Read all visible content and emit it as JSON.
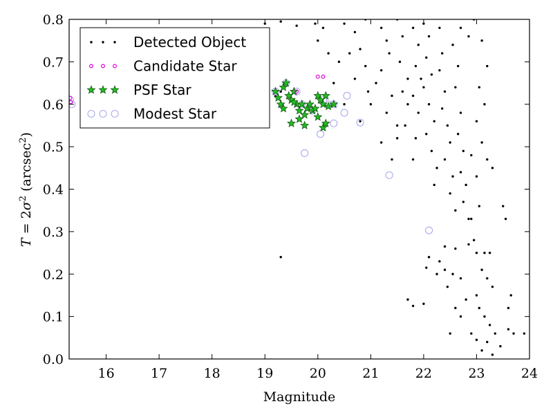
{
  "chart_data": {
    "type": "scatter",
    "xlabel": "Magnitude",
    "ylabel_parts": {
      "prefix": "T",
      "eq": " = 2",
      "sigma": "σ",
      "sup": "2",
      "unit_open": " (arcsec",
      "unit_close": ")"
    },
    "xlim": [
      15.3,
      24.0
    ],
    "ylim": [
      0.0,
      0.8
    ],
    "xticks": [
      16,
      17,
      18,
      19,
      20,
      21,
      22,
      23,
      24
    ],
    "yticks": [
      0.0,
      0.1,
      0.2,
      0.3,
      0.4,
      0.5,
      0.6,
      0.7,
      0.8
    ],
    "grid": false,
    "legend_position": "upper-left",
    "series": [
      {
        "name": "Detected Object",
        "marker": "dot",
        "color": "#000000",
        "points": [
          [
            19.3,
            0.24
          ],
          [
            19.05,
            0.64
          ],
          [
            19.2,
            0.62
          ],
          [
            19.3,
            0.63
          ],
          [
            19.0,
            0.79
          ],
          [
            19.3,
            0.795
          ],
          [
            19.6,
            0.785
          ],
          [
            19.95,
            0.79
          ],
          [
            20.1,
            0.78
          ],
          [
            20.5,
            0.79
          ],
          [
            20.7,
            0.77
          ],
          [
            20.9,
            0.8
          ],
          [
            20.6,
            0.72
          ],
          [
            20.4,
            0.7
          ],
          [
            20.2,
            0.72
          ],
          [
            20.0,
            0.75
          ],
          [
            20.8,
            0.73
          ],
          [
            20.9,
            0.69
          ],
          [
            20.7,
            0.66
          ],
          [
            20.95,
            0.63
          ],
          [
            21.0,
            0.6
          ],
          [
            20.3,
            0.65
          ],
          [
            20.5,
            0.6
          ],
          [
            20.8,
            0.56
          ],
          [
            21.2,
            0.78
          ],
          [
            21.3,
            0.75
          ],
          [
            21.35,
            0.72
          ],
          [
            21.2,
            0.68
          ],
          [
            21.1,
            0.65
          ],
          [
            21.4,
            0.62
          ],
          [
            21.3,
            0.58
          ],
          [
            21.5,
            0.55
          ],
          [
            21.2,
            0.51
          ],
          [
            21.4,
            0.47
          ],
          [
            21.5,
            0.52
          ],
          [
            21.5,
            0.8
          ],
          [
            21.6,
            0.76
          ],
          [
            21.55,
            0.7
          ],
          [
            21.7,
            0.66
          ],
          [
            21.6,
            0.63
          ],
          [
            21.7,
            0.6
          ],
          [
            21.65,
            0.55
          ],
          [
            21.8,
            0.78
          ],
          [
            21.9,
            0.74
          ],
          [
            21.85,
            0.69
          ],
          [
            21.95,
            0.66
          ],
          [
            21.8,
            0.62
          ],
          [
            21.9,
            0.58
          ],
          [
            21.85,
            0.52
          ],
          [
            21.8,
            0.47
          ],
          [
            22.0,
            0.79
          ],
          [
            22.1,
            0.76
          ],
          [
            22.05,
            0.71
          ],
          [
            22.15,
            0.67
          ],
          [
            22.0,
            0.64
          ],
          [
            22.1,
            0.6
          ],
          [
            22.2,
            0.56
          ],
          [
            22.05,
            0.53
          ],
          [
            22.15,
            0.49
          ],
          [
            22.25,
            0.45
          ],
          [
            22.2,
            0.41
          ],
          [
            22.3,
            0.78
          ],
          [
            22.35,
            0.72
          ],
          [
            22.3,
            0.68
          ],
          [
            22.4,
            0.63
          ],
          [
            22.35,
            0.59
          ],
          [
            22.45,
            0.55
          ],
          [
            22.5,
            0.51
          ],
          [
            22.4,
            0.47
          ],
          [
            22.55,
            0.43
          ],
          [
            22.5,
            0.39
          ],
          [
            22.6,
            0.35
          ],
          [
            22.55,
            0.74
          ],
          [
            22.65,
            0.69
          ],
          [
            22.6,
            0.64
          ],
          [
            22.7,
            0.58
          ],
          [
            22.65,
            0.53
          ],
          [
            22.75,
            0.49
          ],
          [
            22.7,
            0.44
          ],
          [
            22.8,
            0.41
          ],
          [
            22.75,
            0.37
          ],
          [
            22.85,
            0.33
          ],
          [
            22.7,
            0.78
          ],
          [
            22.85,
            0.76
          ],
          [
            22.95,
            0.8
          ],
          [
            23.1,
            0.75
          ],
          [
            23.2,
            0.69
          ],
          [
            23.05,
            0.64
          ],
          [
            23.15,
            0.6
          ],
          [
            23.0,
            0.56
          ],
          [
            23.1,
            0.51
          ],
          [
            23.2,
            0.47
          ],
          [
            23.3,
            0.45
          ],
          [
            22.9,
            0.48
          ],
          [
            23.0,
            0.43
          ],
          [
            23.05,
            0.36
          ],
          [
            22.9,
            0.33
          ],
          [
            23.5,
            0.36
          ],
          [
            23.55,
            0.33
          ],
          [
            22.4,
            0.265
          ],
          [
            22.6,
            0.26
          ],
          [
            22.3,
            0.23
          ],
          [
            22.4,
            0.21
          ],
          [
            22.55,
            0.2
          ],
          [
            22.7,
            0.19
          ],
          [
            22.85,
            0.27
          ],
          [
            22.95,
            0.28
          ],
          [
            23.0,
            0.25
          ],
          [
            23.15,
            0.25
          ],
          [
            23.25,
            0.25
          ],
          [
            23.1,
            0.21
          ],
          [
            23.2,
            0.19
          ],
          [
            23.3,
            0.17
          ],
          [
            23.0,
            0.15
          ],
          [
            22.8,
            0.14
          ],
          [
            22.6,
            0.12
          ],
          [
            22.7,
            0.1
          ],
          [
            23.05,
            0.12
          ],
          [
            23.15,
            0.1
          ],
          [
            23.25,
            0.08
          ],
          [
            23.35,
            0.06
          ],
          [
            23.2,
            0.04
          ],
          [
            23.1,
            0.02
          ],
          [
            23.3,
            0.01
          ],
          [
            23.45,
            0.03
          ],
          [
            23.6,
            0.07
          ],
          [
            23.7,
            0.06
          ],
          [
            23.9,
            0.06
          ],
          [
            23.6,
            0.12
          ],
          [
            23.65,
            0.15
          ],
          [
            21.7,
            0.14
          ],
          [
            21.8,
            0.125
          ],
          [
            22.0,
            0.13
          ],
          [
            22.5,
            0.06
          ],
          [
            22.05,
            0.215
          ],
          [
            22.1,
            0.24
          ],
          [
            22.25,
            0.2
          ],
          [
            22.45,
            0.17
          ],
          [
            22.9,
            0.06
          ],
          [
            23.0,
            0.045
          ]
        ]
      },
      {
        "name": "Candidate Star",
        "marker": "circle-small",
        "color": "#dd00dd",
        "points": [
          [
            15.32,
            0.615
          ],
          [
            15.33,
            0.605
          ],
          [
            20.0,
            0.665
          ],
          [
            20.1,
            0.665
          ],
          [
            19.6,
            0.63
          ]
        ]
      },
      {
        "name": "PSF Star",
        "marker": "star",
        "color": "#22bb22",
        "points": [
          [
            19.2,
            0.63
          ],
          [
            19.25,
            0.615
          ],
          [
            19.3,
            0.6
          ],
          [
            19.35,
            0.64
          ],
          [
            19.4,
            0.65
          ],
          [
            19.45,
            0.62
          ],
          [
            19.5,
            0.61
          ],
          [
            19.55,
            0.63
          ],
          [
            19.6,
            0.6
          ],
          [
            19.65,
            0.585
          ],
          [
            19.7,
            0.6
          ],
          [
            19.75,
            0.575
          ],
          [
            19.8,
            0.59
          ],
          [
            19.85,
            0.6
          ],
          [
            19.9,
            0.585
          ],
          [
            19.95,
            0.59
          ],
          [
            20.0,
            0.62
          ],
          [
            20.05,
            0.61
          ],
          [
            20.1,
            0.6
          ],
          [
            20.15,
            0.62
          ],
          [
            20.2,
            0.595
          ],
          [
            20.3,
            0.6
          ],
          [
            19.5,
            0.555
          ],
          [
            19.65,
            0.565
          ],
          [
            19.75,
            0.55
          ],
          [
            20.1,
            0.545
          ],
          [
            19.35,
            0.59
          ],
          [
            19.55,
            0.605
          ],
          [
            20.0,
            0.57
          ],
          [
            20.15,
            0.555
          ]
        ]
      },
      {
        "name": "Modest Star",
        "marker": "circle-large",
        "color": "#aaaaee",
        "points": [
          [
            15.32,
            0.61
          ],
          [
            15.35,
            0.6
          ],
          [
            19.6,
            0.63
          ],
          [
            20.05,
            0.53
          ],
          [
            20.3,
            0.555
          ],
          [
            19.75,
            0.485
          ],
          [
            20.3,
            0.6
          ],
          [
            20.5,
            0.58
          ],
          [
            20.55,
            0.62
          ],
          [
            20.8,
            0.557
          ],
          [
            21.35,
            0.433
          ],
          [
            22.1,
            0.303
          ],
          [
            19.2,
            0.63
          ],
          [
            19.4,
            0.65
          ],
          [
            19.7,
            0.6
          ],
          [
            19.9,
            0.585
          ],
          [
            20.1,
            0.61
          ],
          [
            20.2,
            0.6
          ]
        ]
      }
    ]
  },
  "legend": {
    "items": [
      {
        "label": "Detected Object",
        "marker": "dot"
      },
      {
        "label": "Candidate Star",
        "marker": "circle-small"
      },
      {
        "label": "PSF Star",
        "marker": "star"
      },
      {
        "label": "Modest Star",
        "marker": "circle-large"
      }
    ]
  }
}
